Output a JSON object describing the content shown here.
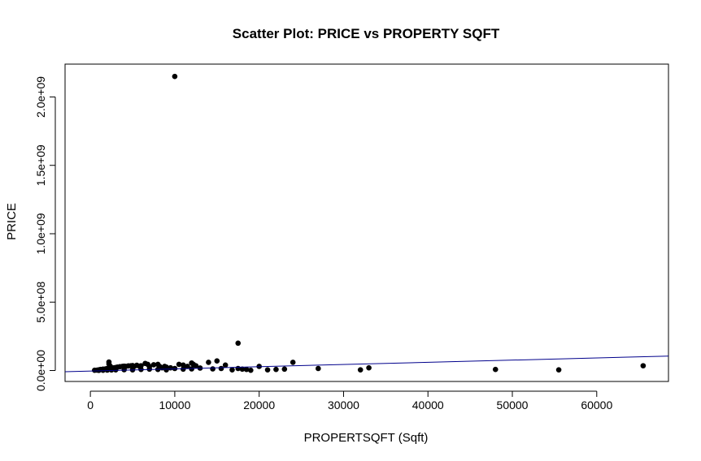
{
  "chart_data": {
    "type": "scatter",
    "title": "Scatter Plot: PRICE vs PROPERTY SQFT",
    "xlabel": "PROPERTSQFT (Sqft)",
    "ylabel": "PRICE",
    "xlim": [
      -3000,
      68500
    ],
    "ylim": [
      -80000000,
      2240000000
    ],
    "x_ticks": [
      0,
      10000,
      20000,
      30000,
      40000,
      50000,
      60000
    ],
    "x_tick_labels": [
      "0",
      "10000",
      "20000",
      "30000",
      "40000",
      "50000",
      "60000"
    ],
    "y_ticks": [
      0,
      500000000,
      1000000000,
      1500000000,
      2000000000
    ],
    "y_tick_labels": [
      "0.0e+00",
      "5.0e+08",
      "1.0e+09",
      "1.5e+09",
      "2.0e+09"
    ],
    "point_color": "#000000",
    "grid": false,
    "regression_line": {
      "color": "#00008b",
      "intercept": -4000000,
      "slope": 1600
    },
    "series": [
      {
        "points": [
          [
            10000,
            2150000000
          ],
          [
            17500,
            200000000
          ],
          [
            2200,
            62000000
          ],
          [
            2200,
            48000000
          ],
          [
            2300,
            35000000
          ],
          [
            2400,
            28000000
          ],
          [
            1000,
            5000000
          ],
          [
            1200,
            8000000
          ],
          [
            1500,
            10000000
          ],
          [
            1800,
            12000000
          ],
          [
            2000,
            15000000
          ],
          [
            2500,
            18000000
          ],
          [
            2800,
            20000000
          ],
          [
            3000,
            22000000
          ],
          [
            3200,
            25000000
          ],
          [
            3500,
            28000000
          ],
          [
            3800,
            30000000
          ],
          [
            4000,
            32000000
          ],
          [
            4200,
            30000000
          ],
          [
            4500,
            34000000
          ],
          [
            4800,
            35000000
          ],
          [
            5000,
            36000000
          ],
          [
            5200,
            30000000
          ],
          [
            5500,
            38000000
          ],
          [
            5800,
            32000000
          ],
          [
            6000,
            35000000
          ],
          [
            6500,
            52000000
          ],
          [
            6800,
            45000000
          ],
          [
            7000,
            30000000
          ],
          [
            7500,
            42000000
          ],
          [
            8000,
            45000000
          ],
          [
            8200,
            30000000
          ],
          [
            8500,
            20000000
          ],
          [
            8800,
            30000000
          ],
          [
            9000,
            25000000
          ],
          [
            9500,
            20000000
          ],
          [
            10000,
            15000000
          ],
          [
            10500,
            45000000
          ],
          [
            11000,
            40000000
          ],
          [
            11500,
            30000000
          ],
          [
            12000,
            55000000
          ],
          [
            12200,
            45000000
          ],
          [
            12500,
            35000000
          ],
          [
            13000,
            18000000
          ],
          [
            500,
            2000000
          ],
          [
            800,
            3000000
          ],
          [
            1000,
            1000000
          ],
          [
            1500,
            2000000
          ],
          [
            2000,
            3000000
          ],
          [
            2500,
            4000000
          ],
          [
            3000,
            5000000
          ],
          [
            4000,
            6000000
          ],
          [
            5000,
            5000000
          ],
          [
            6000,
            8000000
          ],
          [
            7000,
            10000000
          ],
          [
            8000,
            8000000
          ],
          [
            9000,
            5000000
          ],
          [
            11000,
            10000000
          ],
          [
            12000,
            12000000
          ],
          [
            14000,
            60000000
          ],
          [
            14500,
            12000000
          ],
          [
            15000,
            70000000
          ],
          [
            15500,
            15000000
          ],
          [
            16000,
            40000000
          ],
          [
            16800,
            5000000
          ],
          [
            17500,
            15000000
          ],
          [
            18000,
            10000000
          ],
          [
            18500,
            8000000
          ],
          [
            19000,
            2000000
          ],
          [
            20000,
            30000000
          ],
          [
            21000,
            5000000
          ],
          [
            22000,
            8000000
          ],
          [
            23000,
            10000000
          ],
          [
            24000,
            60000000
          ],
          [
            27000,
            15000000
          ],
          [
            32000,
            5000000
          ],
          [
            33000,
            20000000
          ],
          [
            48000,
            8000000
          ],
          [
            55500,
            5000000
          ],
          [
            65500,
            35000000
          ]
        ]
      }
    ]
  }
}
